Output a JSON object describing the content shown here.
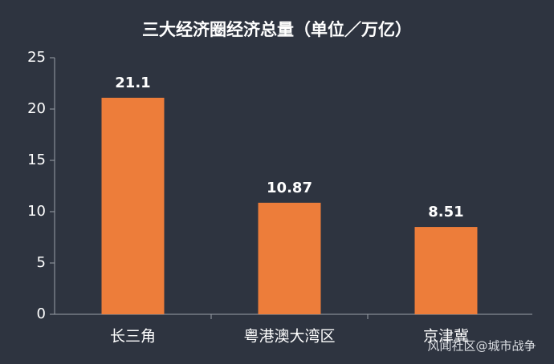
{
  "chart_data": {
    "type": "bar",
    "title": "三大经济圈经济总量（单位／万亿）",
    "categories": [
      "长三角",
      "粤港澳大湾区",
      "京津冀"
    ],
    "values": [
      21.1,
      10.87,
      8.51
    ],
    "color": "#ed7d3a",
    "ylim": [
      0,
      25
    ],
    "yticks": [
      0,
      5,
      10,
      15,
      20,
      25
    ],
    "grid": false,
    "watermark": "风闻社区@城市战争"
  }
}
